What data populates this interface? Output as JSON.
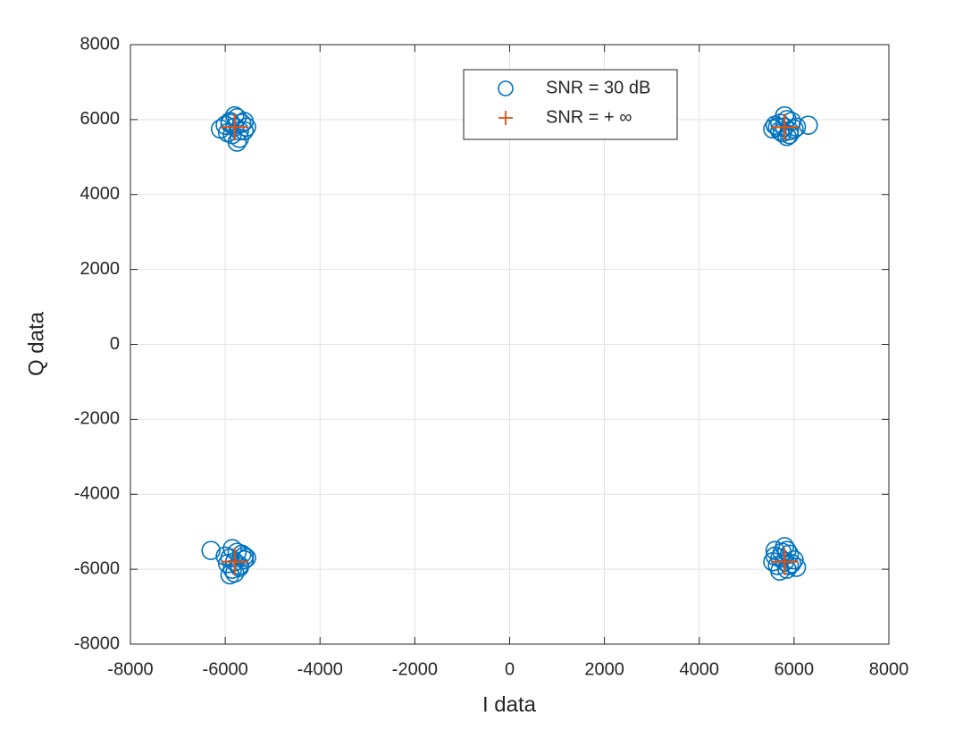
{
  "chart_data": {
    "type": "scatter",
    "xlabel": "I data",
    "ylabel": "Q data",
    "xlim": [
      -8000,
      8000
    ],
    "ylim": [
      -8000,
      8000
    ],
    "xticks": [
      -8000,
      -6000,
      -4000,
      -2000,
      0,
      2000,
      4000,
      6000,
      8000
    ],
    "yticks": [
      -8000,
      -6000,
      -4000,
      -2000,
      0,
      2000,
      4000,
      6000,
      8000
    ],
    "grid": true,
    "legend_position": "north",
    "series": [
      {
        "name": "SNR = 30 dB",
        "color": "#0072BD",
        "marker": "circle",
        "x": [
          -5800,
          -5900,
          -5700,
          -6000,
          -5600,
          -5850,
          -5750,
          -6100,
          -5550,
          -5950,
          -5650,
          -5800,
          -5700,
          -5900,
          -5600,
          -5750,
          5800,
          5700,
          5900,
          5600,
          6000,
          5850,
          5750,
          5650,
          5950,
          6300,
          5800,
          5700,
          5900,
          5550,
          6050,
          5850,
          -5800,
          -5900,
          -5700,
          -6000,
          -5600,
          -5850,
          -5750,
          -6300,
          -5550,
          -5950,
          -5650,
          -5800,
          -5700,
          -5900,
          -5600,
          -5850,
          5800,
          5700,
          5900,
          5600,
          6000,
          5850,
          5750,
          5650,
          5950,
          5600,
          5800,
          5700,
          5900,
          5550,
          6050,
          5850
        ],
        "y": [
          5800,
          5900,
          5700,
          5850,
          5950,
          5600,
          6050,
          5750,
          5800,
          5650,
          5900,
          6100,
          5500,
          5950,
          5700,
          5400,
          5800,
          5900,
          5700,
          5850,
          5750,
          6000,
          5650,
          5800,
          5950,
          5850,
          6100,
          5700,
          5600,
          5750,
          5800,
          5550,
          -5800,
          -5700,
          -5900,
          -5650,
          -5750,
          -6000,
          -5550,
          -5500,
          -5700,
          -5850,
          -5600,
          -6100,
          -5950,
          -6150,
          -5650,
          -5450,
          -5800,
          -5700,
          -5900,
          -5650,
          -5750,
          -6000,
          -5550,
          -5900,
          -5850,
          -5500,
          -5400,
          -6050,
          -5600,
          -5800,
          -5950,
          -5500
        ]
      },
      {
        "name": "SNR = + ∞",
        "color": "#D95319",
        "marker": "plus",
        "x": [
          -5800,
          5800,
          -5800,
          5800
        ],
        "y": [
          5800,
          5800,
          -5800,
          -5800
        ]
      }
    ]
  }
}
